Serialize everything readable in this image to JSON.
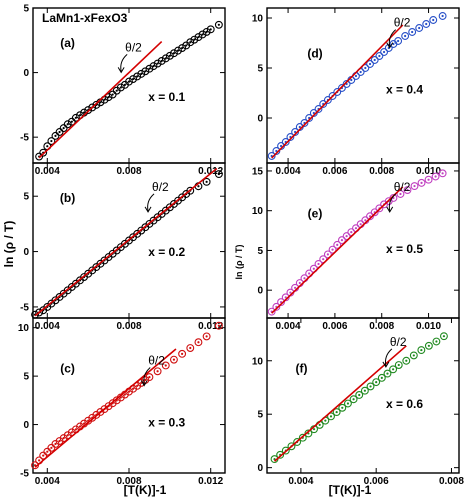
{
  "figure": {
    "formula": "LaMn1-xFexO3",
    "ylabel_left": "ln (ρ / T)",
    "ylabel_right": "ln (ρ / T)",
    "xlabel_left": "[T(K)]-1",
    "xlabel_right": "[T(K)]-1",
    "annotation": "θ/2"
  },
  "chart_data": [
    {
      "type": "scatter",
      "panel": "(a)",
      "label": "x = 0.1",
      "xlim": [
        0.0033,
        0.0127
      ],
      "ylim": [
        -7,
        5
      ],
      "xticks": [
        "0.004",
        "0.008",
        "0.012"
      ],
      "xtick_values": [
        0.004,
        0.008,
        0.012
      ],
      "yticks": [
        "-5",
        "0",
        "5"
      ],
      "ytick_values": [
        -5,
        0,
        5
      ],
      "color": "#000000",
      "x": [
        0.0036,
        0.0038,
        0.004,
        0.0042,
        0.0044,
        0.0046,
        0.0048,
        0.005,
        0.0052,
        0.0054,
        0.0056,
        0.0058,
        0.006,
        0.0062,
        0.0064,
        0.0066,
        0.0068,
        0.007,
        0.0072,
        0.0074,
        0.0076,
        0.0078,
        0.008,
        0.0082,
        0.0084,
        0.0086,
        0.0088,
        0.009,
        0.0092,
        0.0094,
        0.0096,
        0.0098,
        0.01,
        0.0102,
        0.0104,
        0.0106,
        0.0108,
        0.011,
        0.0112,
        0.0114,
        0.0116,
        0.0118,
        0.012,
        0.0124
      ],
      "y": [
        -6.5,
        -6.2,
        -5.7,
        -5.3,
        -4.9,
        -4.6,
        -4.3,
        -4.0,
        -3.8,
        -3.5,
        -3.3,
        -3.1,
        -2.9,
        -2.7,
        -2.5,
        -2.3,
        -2.1,
        -1.9,
        -1.7,
        -1.4,
        -1.15,
        -0.95,
        -0.7,
        -0.5,
        -0.3,
        -0.1,
        0.1,
        0.3,
        0.5,
        0.7,
        0.9,
        1.1,
        1.3,
        1.5,
        1.7,
        1.9,
        2.1,
        2.35,
        2.55,
        2.75,
        2.95,
        3.15,
        3.35,
        3.7
      ],
      "fit": {
        "x": [
          0.0036,
          0.0096
        ],
        "y": [
          -6.6,
          2.4
        ]
      }
    },
    {
      "type": "scatter",
      "panel": "(b)",
      "label": "x = 0.2",
      "xlim": [
        0.0033,
        0.0127
      ],
      "ylim": [
        -6,
        8
      ],
      "xticks": [
        "0.004",
        "0.008",
        "0.012"
      ],
      "xtick_values": [
        0.004,
        0.008,
        0.012
      ],
      "yticks": [
        "-5",
        "0",
        "5"
      ],
      "ytick_values": [
        -5,
        0,
        5
      ],
      "color": "#000000",
      "x": [
        0.0034,
        0.0036,
        0.0038,
        0.004,
        0.0042,
        0.0044,
        0.0046,
        0.0048,
        0.005,
        0.0052,
        0.0054,
        0.0056,
        0.0058,
        0.006,
        0.0062,
        0.0064,
        0.0066,
        0.0068,
        0.007,
        0.0072,
        0.0074,
        0.0076,
        0.0078,
        0.008,
        0.0082,
        0.0084,
        0.0086,
        0.0088,
        0.009,
        0.0092,
        0.0094,
        0.0096,
        0.0098,
        0.01,
        0.0102,
        0.0104,
        0.0106,
        0.0108,
        0.011,
        0.0114,
        0.0118,
        0.0124
      ],
      "y": [
        -5.7,
        -5.5,
        -5.3,
        -5.0,
        -4.7,
        -4.4,
        -4.1,
        -3.8,
        -3.5,
        -3.2,
        -2.9,
        -2.6,
        -2.3,
        -2.0,
        -1.7,
        -1.4,
        -1.1,
        -0.8,
        -0.5,
        -0.2,
        0.1,
        0.4,
        0.7,
        1.0,
        1.3,
        1.6,
        1.9,
        2.2,
        2.5,
        2.8,
        3.1,
        3.4,
        3.7,
        4.0,
        4.3,
        4.6,
        4.9,
        5.2,
        5.5,
        5.9,
        6.3,
        7.0
      ],
      "fit": {
        "x": [
          0.0034,
          0.0123
        ],
        "y": [
          -5.8,
          7.5
        ]
      }
    },
    {
      "type": "scatter",
      "panel": "(c)",
      "label": "x = 0.3",
      "xlim": [
        0.0033,
        0.0127
      ],
      "ylim": [
        -5,
        11
      ],
      "xticks": [
        "0.004",
        "0.008",
        "0.012"
      ],
      "xtick_values": [
        0.004,
        0.008,
        0.012
      ],
      "yticks": [
        "-5",
        "0",
        "5",
        "10"
      ],
      "ytick_values": [
        -5,
        0,
        5,
        10
      ],
      "color": "#d01010",
      "x": [
        0.0034,
        0.0036,
        0.0038,
        0.004,
        0.0042,
        0.0044,
        0.0046,
        0.0048,
        0.005,
        0.0052,
        0.0054,
        0.0056,
        0.0058,
        0.006,
        0.0062,
        0.0064,
        0.0066,
        0.0068,
        0.007,
        0.0072,
        0.0074,
        0.0076,
        0.0078,
        0.008,
        0.0082,
        0.0084,
        0.0086,
        0.0088,
        0.009,
        0.0094,
        0.0098,
        0.0102,
        0.0106,
        0.011,
        0.0114,
        0.0118,
        0.0124
      ],
      "y": [
        -4.2,
        -3.7,
        -3.2,
        -2.8,
        -2.4,
        -2.0,
        -1.7,
        -1.4,
        -1.1,
        -0.8,
        -0.5,
        -0.2,
        0.1,
        0.4,
        0.7,
        1.0,
        1.3,
        1.6,
        1.9,
        2.2,
        2.5,
        2.8,
        3.1,
        3.4,
        3.7,
        4.0,
        4.3,
        4.6,
        4.9,
        5.5,
        6.1,
        6.7,
        7.3,
        7.9,
        8.5,
        9.1,
        10.2
      ],
      "fit": {
        "x": [
          0.0034,
          0.0103
        ],
        "y": [
          -4.4,
          7.8
        ]
      }
    },
    {
      "type": "scatter",
      "panel": "(d)",
      "label": "x = 0.4",
      "xlim": [
        0.0031,
        0.0113
      ],
      "ylim": [
        -4.5,
        11
      ],
      "xticks": [
        "0.004",
        "0.006",
        "0.008",
        "0.010"
      ],
      "xtick_values": [
        0.004,
        0.006,
        0.008,
        0.01
      ],
      "yticks": [
        "0",
        "5",
        "10"
      ],
      "ytick_values": [
        0,
        5,
        10
      ],
      "color": "#2850c8",
      "x": [
        0.0033,
        0.0035,
        0.0037,
        0.0039,
        0.0041,
        0.0043,
        0.0045,
        0.0047,
        0.0049,
        0.0051,
        0.0053,
        0.0055,
        0.0057,
        0.0059,
        0.0061,
        0.0063,
        0.0065,
        0.0067,
        0.0069,
        0.0071,
        0.0073,
        0.0075,
        0.0077,
        0.0079,
        0.0081,
        0.0083,
        0.0085,
        0.0087,
        0.009,
        0.0093,
        0.0096,
        0.0099,
        0.0102,
        0.0106
      ],
      "y": [
        -3.8,
        -3.3,
        -2.8,
        -2.4,
        -1.9,
        -1.4,
        -0.9,
        -0.5,
        0.0,
        0.5,
        0.9,
        1.4,
        1.8,
        2.2,
        2.6,
        3.0,
        3.4,
        3.8,
        4.2,
        4.6,
        5.0,
        5.4,
        5.8,
        6.2,
        6.6,
        7.0,
        7.4,
        7.7,
        8.2,
        8.6,
        9.0,
        9.4,
        9.8,
        10.2
      ],
      "fit": {
        "x": [
          0.0033,
          0.0089
        ],
        "y": [
          -4.0,
          9.3
        ]
      }
    },
    {
      "type": "scatter",
      "panel": "(e)",
      "label": "x = 0.5",
      "xlim": [
        0.0031,
        0.0113
      ],
      "ylim": [
        -3.5,
        16
      ],
      "xticks": [
        "0.004",
        "0.006",
        "0.008",
        "0.010"
      ],
      "xtick_values": [
        0.004,
        0.006,
        0.008,
        0.01
      ],
      "yticks": [
        "0",
        "5",
        "10",
        "15"
      ],
      "ytick_values": [
        0,
        5,
        10,
        15
      ],
      "color": "#c040c0",
      "x": [
        0.0033,
        0.0035,
        0.0037,
        0.0039,
        0.0041,
        0.0043,
        0.0045,
        0.0047,
        0.0049,
        0.0051,
        0.0053,
        0.0055,
        0.0057,
        0.0059,
        0.0061,
        0.0063,
        0.0065,
        0.0067,
        0.0069,
        0.0071,
        0.0073,
        0.0075,
        0.0077,
        0.0079,
        0.0081,
        0.0083,
        0.0085,
        0.0088,
        0.0091,
        0.0094,
        0.0097,
        0.01,
        0.0103,
        0.0106
      ],
      "y": [
        -2.7,
        -2.1,
        -1.5,
        -0.9,
        -0.3,
        0.3,
        0.9,
        1.5,
        2.1,
        2.7,
        3.3,
        3.9,
        4.5,
        5.1,
        5.7,
        6.3,
        6.8,
        7.3,
        7.8,
        8.3,
        8.8,
        9.3,
        9.8,
        10.3,
        10.8,
        11.2,
        11.6,
        12.1,
        12.6,
        13.1,
        13.5,
        13.9,
        14.3,
        14.7
      ],
      "fit": {
        "x": [
          0.0033,
          0.0089
        ],
        "y": [
          -2.9,
          13.0
        ]
      }
    },
    {
      "type": "scatter",
      "panel": "(f)",
      "label": "x = 0.6",
      "xlim": [
        0.0031,
        0.0082
      ],
      "ylim": [
        -0.5,
        14
      ],
      "xticks": [
        "0.004",
        "0.006",
        "0.008"
      ],
      "xtick_values": [
        0.004,
        0.006,
        0.008
      ],
      "yticks": [
        "0",
        "5",
        "10"
      ],
      "ytick_values": [
        0,
        5,
        10
      ],
      "color": "#208a20",
      "x": [
        0.0033,
        0.00345,
        0.0036,
        0.00375,
        0.0039,
        0.00405,
        0.0042,
        0.00435,
        0.0045,
        0.00465,
        0.0048,
        0.00495,
        0.0051,
        0.00525,
        0.0054,
        0.00555,
        0.0057,
        0.00585,
        0.006,
        0.00615,
        0.0063,
        0.00645,
        0.0066,
        0.0068,
        0.007,
        0.0072,
        0.0074,
        0.0076,
        0.0078
      ],
      "y": [
        0.8,
        1.2,
        1.6,
        2.0,
        2.4,
        2.8,
        3.2,
        3.6,
        4.0,
        4.4,
        4.8,
        5.2,
        5.6,
        6.0,
        6.4,
        6.8,
        7.2,
        7.6,
        8.0,
        8.4,
        8.8,
        9.2,
        9.6,
        10.0,
        10.5,
        11.0,
        11.4,
        11.8,
        12.3
      ],
      "fit": {
        "x": [
          0.0033,
          0.0068
        ],
        "y": [
          0.6,
          11.4
        ]
      }
    }
  ]
}
